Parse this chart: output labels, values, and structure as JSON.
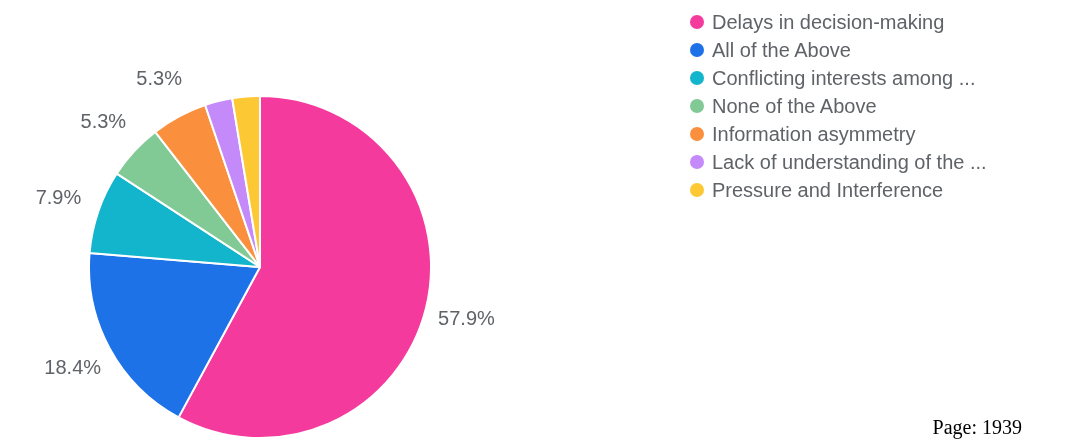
{
  "chart_data": {
    "type": "pie",
    "categories": [
      "Delays in decision-making",
      "All of the Above",
      "Conflicting interests among ...",
      "None of the Above",
      "Information asymmetry",
      "Lack of understanding of the ...",
      "Pressure and Interference"
    ],
    "values": [
      57.9,
      18.4,
      7.9,
      5.3,
      5.3,
      2.6,
      2.6
    ],
    "colors": [
      "#f53a9e",
      "#1e72e8",
      "#12b5cb",
      "#81c995",
      "#fa903e",
      "#c58af9",
      "#fcc934"
    ],
    "value_labels": [
      "57.9%",
      "18.4%",
      "7.9%",
      "5.3%",
      "5.3%",
      null,
      null
    ],
    "legend": "top right",
    "annotations": [
      "Page: 1939"
    ]
  }
}
